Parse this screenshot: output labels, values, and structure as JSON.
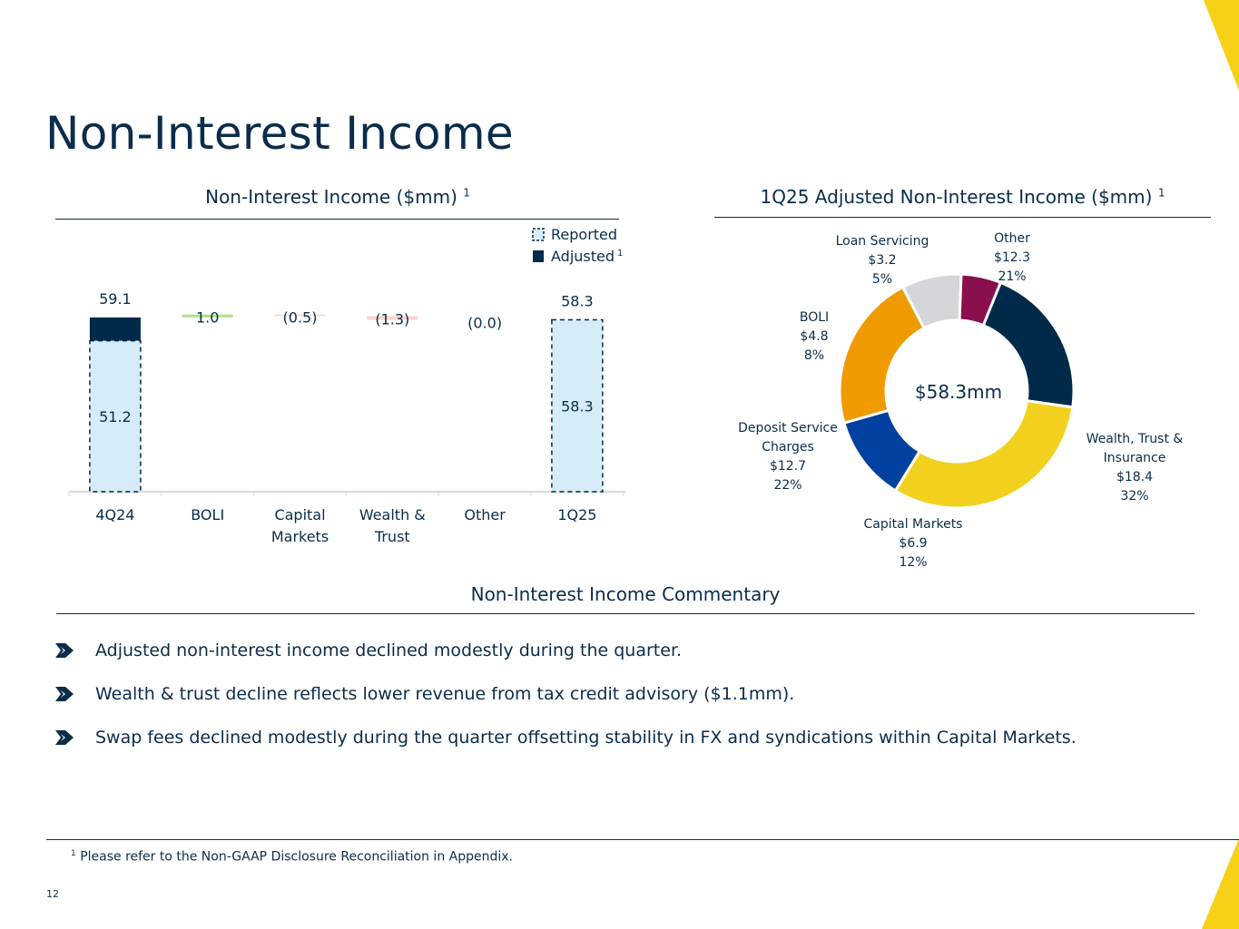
{
  "page": {
    "title": "Non-Interest Income",
    "page_number": "12",
    "footnote_marker": "1",
    "footnote_text": "Please refer to the Non-GAAP Disclosure Reconciliation in Appendix.",
    "accent_color": "#f7d117",
    "navy_color": "#0b2c4a"
  },
  "waterfall": {
    "title": "Non-Interest Income ($mm)",
    "title_sup": "1",
    "legend": [
      {
        "label": "Reported",
        "sup": "",
        "style": "dashed-light-blue"
      },
      {
        "label": "Adjusted",
        "sup": "1",
        "style": "solid-navy"
      }
    ]
  },
  "donut": {
    "title": "1Q25 Adjusted Non-Interest Income ($mm)",
    "title_sup": "1",
    "center_label": "$58.3mm"
  },
  "commentary": {
    "title": "Non-Interest Income Commentary",
    "bullets": [
      "Adjusted non-interest income declined modestly during the quarter.",
      "Wealth & trust decline reflects lower revenue from tax credit advisory ($1.1mm).",
      "Swap fees declined modestly during the quarter offsetting stability in FX and syndications within Capital Markets."
    ]
  },
  "chart_data": [
    {
      "type": "bar",
      "subtype": "waterfall",
      "title": "Non-Interest Income ($mm)",
      "categories": [
        [
          "4Q24"
        ],
        [
          "BOLI"
        ],
        [
          "Capital",
          "Markets"
        ],
        [
          "Wealth &",
          "Trust"
        ],
        [
          "Other"
        ],
        [
          "1Q25"
        ]
      ],
      "steps": [
        {
          "kind": "total",
          "reported": 51.2,
          "adjusted": 59.1,
          "reported_label": "51.2",
          "adjusted_label": "59.1"
        },
        {
          "kind": "delta",
          "value": 1.0,
          "label": "1.0"
        },
        {
          "kind": "delta",
          "value": -0.5,
          "label": "(0.5)"
        },
        {
          "kind": "delta",
          "value": -1.3,
          "label": "(1.3)"
        },
        {
          "kind": "delta",
          "value": 0.0,
          "label": "(0.0)"
        },
        {
          "kind": "total",
          "reported": 58.3,
          "adjusted": 58.3,
          "reported_label": "58.3",
          "adjusted_label": "58.3"
        }
      ],
      "colors": {
        "adjusted": "#002a4a",
        "reported_fill": "#d6ecfb",
        "reported_stroke": "#002a4a",
        "increase": "#b3e08f",
        "decrease": "#f9d5d0"
      }
    },
    {
      "type": "pie",
      "subtype": "donut",
      "title": "1Q25 Adjusted Non-Interest Income ($mm)",
      "total_label": "$58.3mm",
      "slices": [
        {
          "name": [
            "Other"
          ],
          "amount": "$12.3",
          "pct_label": "21%",
          "value": 12.3,
          "color": "#002a4a"
        },
        {
          "name": [
            "Wealth, Trust &",
            "Insurance"
          ],
          "amount": "$18.4",
          "pct_label": "32%",
          "value": 18.4,
          "color": "#f2d11e"
        },
        {
          "name": [
            "Capital Markets"
          ],
          "amount": "$6.9",
          "pct_label": "12%",
          "value": 6.9,
          "color": "#0241a0"
        },
        {
          "name": [
            "Deposit Service",
            "Charges"
          ],
          "amount": "$12.7",
          "pct_label": "22%",
          "value": 12.7,
          "color": "#f09a02"
        },
        {
          "name": [
            "BOLI"
          ],
          "amount": "$4.8",
          "pct_label": "8%",
          "value": 4.8,
          "color": "#d4d6da"
        },
        {
          "name": [
            "Loan Servicing"
          ],
          "amount": "$3.2",
          "pct_label": "5%",
          "value": 3.2,
          "color": "#8a0f4f"
        }
      ]
    }
  ]
}
